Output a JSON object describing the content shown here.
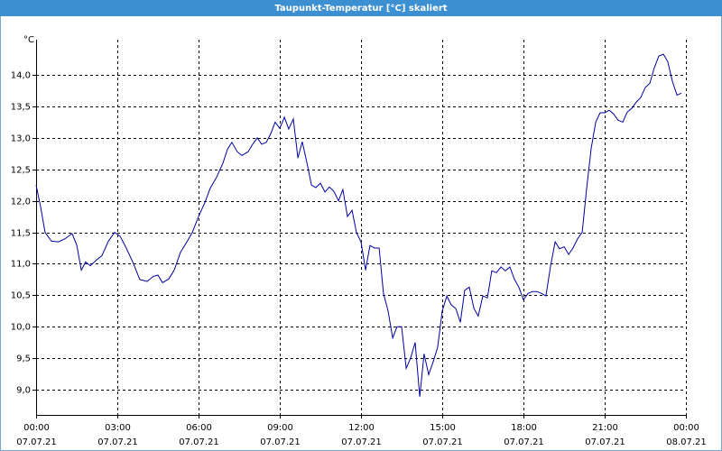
{
  "chart_data": {
    "type": "line",
    "title": "Taupunkt-Temperatur [°C] skaliert",
    "y_unit": "°C",
    "xlim": [
      0,
      24
    ],
    "ylim": [
      8.6,
      14.56
    ],
    "grid": true,
    "xticks": [
      {
        "value": 0,
        "label": "00:00",
        "sublabel": "07.07.21"
      },
      {
        "value": 3,
        "label": "03:00",
        "sublabel": "07.07.21"
      },
      {
        "value": 6,
        "label": "06:00",
        "sublabel": "07.07.21"
      },
      {
        "value": 9,
        "label": "09:00",
        "sublabel": "07.07.21"
      },
      {
        "value": 12,
        "label": "12:00",
        "sublabel": "07.07.21"
      },
      {
        "value": 15,
        "label": "15:00",
        "sublabel": "07.07.21"
      },
      {
        "value": 18,
        "label": "18:00",
        "sublabel": "07.07.21"
      },
      {
        "value": 21,
        "label": "21:00",
        "sublabel": "07.07.21"
      },
      {
        "value": 24,
        "label": "00:00",
        "sublabel": "08.07.21"
      }
    ],
    "yticks": [
      {
        "value": 9,
        "label": "9,0"
      },
      {
        "value": 9.5,
        "label": "9,5"
      },
      {
        "value": 10,
        "label": "10,0"
      },
      {
        "value": 10.5,
        "label": "10,5"
      },
      {
        "value": 11,
        "label": "11,0"
      },
      {
        "value": 11.5,
        "label": "11,5"
      },
      {
        "value": 12,
        "label": "12,0"
      },
      {
        "value": 12.5,
        "label": "12,5"
      },
      {
        "value": 13,
        "label": "13,0"
      },
      {
        "value": 13.5,
        "label": "13,5"
      },
      {
        "value": 14,
        "label": "14,0"
      }
    ],
    "color": "#0000a0",
    "x": [
      0,
      0.17,
      0.33,
      0.57,
      0.83,
      1.07,
      1.33,
      1.5,
      1.67,
      1.83,
      2.0,
      2.23,
      2.43,
      2.67,
      2.9,
      3.1,
      3.33,
      3.57,
      3.83,
      4.1,
      4.33,
      4.5,
      4.67,
      4.9,
      5.1,
      5.33,
      5.57,
      5.77,
      6.0,
      6.23,
      6.43,
      6.67,
      6.9,
      7.07,
      7.23,
      7.43,
      7.6,
      7.83,
      8.0,
      8.17,
      8.33,
      8.5,
      8.67,
      8.83,
      9.0,
      9.17,
      9.33,
      9.5,
      9.67,
      9.83,
      10.0,
      10.17,
      10.33,
      10.5,
      10.67,
      10.83,
      11.0,
      11.17,
      11.33,
      11.5,
      11.67,
      11.83,
      12.0,
      12.17,
      12.33,
      12.5,
      12.67,
      12.83,
      13.0,
      13.17,
      13.33,
      13.5,
      13.67,
      13.83,
      14.0,
      14.17,
      14.33,
      14.5,
      14.67,
      14.83,
      15.0,
      15.17,
      15.33,
      15.5,
      15.67,
      15.83,
      16.0,
      16.17,
      16.33,
      16.5,
      16.67,
      16.83,
      17.0,
      17.17,
      17.33,
      17.5,
      17.67,
      17.83,
      18.0,
      18.17,
      18.33,
      18.5,
      18.67,
      18.83,
      19.0,
      19.17,
      19.33,
      19.5,
      19.67,
      19.83,
      20.0,
      20.17,
      20.33,
      20.5,
      20.67,
      20.83,
      21.0,
      21.17,
      21.33,
      21.5,
      21.67,
      21.83,
      22.0,
      22.17,
      22.33,
      22.5,
      22.67,
      22.83,
      23.0,
      23.17,
      23.33,
      23.5,
      23.67,
      23.83
    ],
    "values": [
      12.25,
      11.9,
      11.5,
      11.36,
      11.35,
      11.4,
      11.48,
      11.3,
      10.9,
      11.03,
      10.97,
      11.06,
      11.13,
      11.36,
      11.5,
      11.44,
      11.25,
      11.03,
      10.75,
      10.72,
      10.8,
      10.82,
      10.7,
      10.76,
      10.9,
      11.18,
      11.35,
      11.5,
      11.75,
      11.97,
      12.2,
      12.38,
      12.6,
      12.82,
      12.93,
      12.78,
      12.72,
      12.78,
      12.9,
      13.0,
      12.9,
      12.93,
      13.07,
      13.25,
      13.15,
      13.33,
      13.14,
      13.3,
      12.68,
      12.94,
      12.61,
      12.25,
      12.21,
      12.28,
      12.14,
      12.22,
      12.15,
      12.0,
      12.18,
      11.75,
      11.85,
      11.5,
      11.35,
      10.9,
      11.29,
      11.25,
      11.25,
      10.53,
      10.25,
      9.82,
      10.0,
      10.0,
      9.34,
      9.5,
      9.75,
      8.89,
      9.57,
      9.24,
      9.45,
      9.67,
      10.25,
      10.49,
      10.35,
      10.29,
      10.07,
      10.58,
      10.63,
      10.29,
      10.17,
      10.49,
      10.46,
      10.89,
      10.86,
      10.95,
      10.89,
      10.95,
      10.75,
      10.63,
      10.43,
      10.53,
      10.56,
      10.56,
      10.53,
      10.49,
      10.96,
      11.35,
      11.24,
      11.27,
      11.15,
      11.25,
      11.4,
      11.5,
      12.18,
      12.83,
      13.25,
      13.4,
      13.4,
      13.44,
      13.38,
      13.28,
      13.25,
      13.41,
      13.47,
      13.57,
      13.64,
      13.8,
      13.87,
      14.11,
      14.3,
      14.33,
      14.21,
      13.9,
      13.68,
      13.71
    ]
  }
}
